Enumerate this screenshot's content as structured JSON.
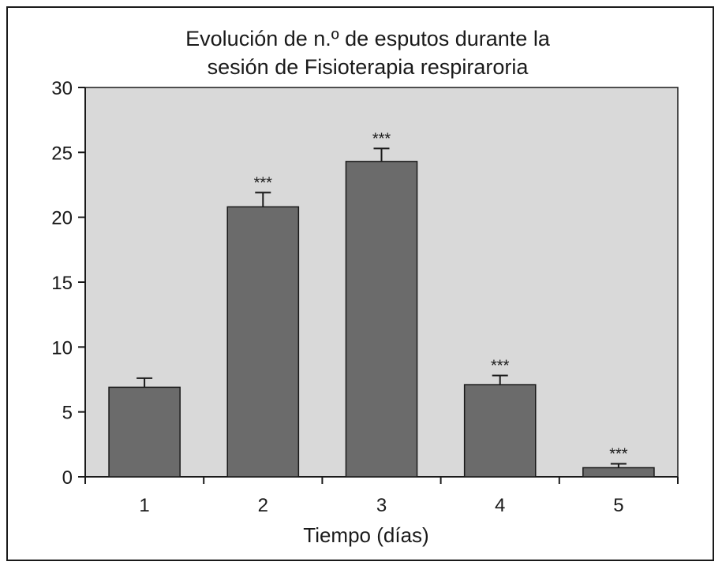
{
  "chart_data": {
    "type": "bar",
    "title": [
      "Evolución de n.º de esputos durante la",
      "sesión de Fisioterapia respiraroria"
    ],
    "xlabel": "Tiempo (días)",
    "ylabel": "",
    "categories": [
      "1",
      "2",
      "3",
      "4",
      "5"
    ],
    "values": [
      6.9,
      20.8,
      24.3,
      7.1,
      0.7
    ],
    "errors": [
      0.7,
      1.1,
      1.0,
      0.7,
      0.3
    ],
    "annotations": [
      "",
      "***",
      "***",
      "***",
      "***"
    ],
    "ylim": [
      0,
      30
    ],
    "yticks": [
      0,
      5,
      10,
      15,
      20,
      25,
      30
    ],
    "grid": false,
    "legend": "none",
    "colors": {
      "plot_background": "#d9d9d9",
      "bar_fill": "#6b6b6b",
      "bar_stroke": "#1a1a1a",
      "axis": "#1a1a1a"
    }
  }
}
